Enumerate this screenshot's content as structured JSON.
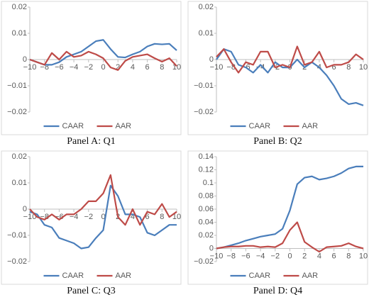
{
  "chart_data": [
    {
      "type": "line",
      "title": "Panel A: Q1",
      "x": [
        -10,
        -9,
        -8,
        -7,
        -6,
        -5,
        -4,
        -3,
        -2,
        -1,
        0,
        1,
        2,
        3,
        4,
        5,
        6,
        7,
        8,
        9,
        10
      ],
      "xlim": [
        -10,
        10
      ],
      "xticks": [
        {
          "value": -10,
          "label": "−10"
        },
        {
          "value": -8,
          "label": "−8"
        },
        {
          "value": -6,
          "label": "−6"
        },
        {
          "value": -4,
          "label": "−4"
        },
        {
          "value": -2,
          "label": "−2"
        },
        0,
        2,
        4,
        6,
        8,
        10
      ],
      "ylim": [
        -0.02,
        0.02
      ],
      "yticks": [
        {
          "value": -0.02,
          "label": "−0.02"
        },
        {
          "value": -0.01,
          "label": "−0.01"
        },
        0,
        0.01,
        0.02
      ],
      "legend": "bottom",
      "series": [
        {
          "name": "CAAR",
          "color": "#4a7ebb",
          "values": [
            0,
            -0.001,
            -0.002,
            -0.002,
            -0.001,
            0.001,
            0.002,
            0.003,
            0.005,
            0.007,
            0.0075,
            0.004,
            0.001,
            0.0008,
            0.002,
            0.003,
            0.005,
            0.006,
            0.0058,
            0.006,
            0.0035
          ]
        },
        {
          "name": "AAR",
          "color": "#be4b48",
          "values": [
            0,
            -0.001,
            -0.002,
            0.0025,
            0,
            0.003,
            0.001,
            0.0015,
            0.003,
            0.002,
            0.0005,
            -0.003,
            -0.004,
            -0.0005,
            0.001,
            0.0015,
            0.002,
            0.0005,
            -0.0008,
            0.0005,
            -0.0025
          ]
        }
      ]
    },
    {
      "type": "line",
      "title": "Panel B: Q2",
      "x": [
        -10,
        -9,
        -8,
        -7,
        -6,
        -5,
        -4,
        -3,
        -2,
        -1,
        0,
        1,
        2,
        3,
        4,
        5,
        6,
        7,
        8,
        9,
        10
      ],
      "xlim": [
        -10,
        10
      ],
      "xticks": [
        {
          "value": -10,
          "label": "−10"
        },
        {
          "value": -8,
          "label": "−8"
        },
        {
          "value": -6,
          "label": "−6"
        },
        {
          "value": -4,
          "label": "−4"
        },
        {
          "value": -2,
          "label": "−2"
        },
        0,
        2,
        4,
        6,
        8,
        10
      ],
      "ylim": [
        -0.02,
        0.02
      ],
      "yticks": [
        {
          "value": -0.02,
          "label": "−0.02"
        },
        {
          "value": -0.01,
          "label": "−0.01"
        },
        0,
        0.01,
        0.02
      ],
      "legend": "bottom",
      "series": [
        {
          "name": "CAAR",
          "color": "#4a7ebb",
          "values": [
            0,
            0.004,
            0.003,
            -0.002,
            -0.003,
            -0.005,
            -0.002,
            -0.005,
            -0.001,
            -0.003,
            -0.003,
            0,
            -0.003,
            -0.001,
            -0.003,
            -0.006,
            -0.01,
            -0.015,
            -0.017,
            -0.0165,
            -0.0175
          ]
        },
        {
          "name": "AAR",
          "color": "#be4b48",
          "values": [
            0.001,
            0.004,
            -0.001,
            -0.005,
            -0.001,
            -0.002,
            0.003,
            0.003,
            -0.003,
            -0.002,
            -0.003,
            0.005,
            -0.002,
            -0.001,
            0.003,
            -0.003,
            -0.002,
            -0.002,
            -0.001,
            0.002,
            0
          ]
        }
      ]
    },
    {
      "type": "line",
      "title": "Panel C: Q3",
      "x": [
        -10,
        -9,
        -8,
        -7,
        -6,
        -5,
        -4,
        -3,
        -2,
        -1,
        0,
        1,
        2,
        3,
        4,
        5,
        6,
        7,
        8,
        9,
        10
      ],
      "xlim": [
        -10,
        10
      ],
      "xticks": [
        {
          "value": -10,
          "label": "−10"
        },
        {
          "value": -8,
          "label": "−8"
        },
        {
          "value": -6,
          "label": "−6"
        },
        {
          "value": -4,
          "label": "−4"
        },
        {
          "value": -2,
          "label": "−2"
        },
        0,
        2,
        4,
        6,
        8,
        10
      ],
      "ylim": [
        -0.02,
        0.02
      ],
      "yticks": [
        {
          "value": -0.02,
          "label": "−0.02"
        },
        {
          "value": -0.01,
          "label": "−0.01"
        },
        0,
        0.01,
        0.02
      ],
      "legend": "bottom",
      "series": [
        {
          "name": "CAAR",
          "color": "#4a7ebb",
          "values": [
            -0.001,
            -0.002,
            -0.006,
            -0.007,
            -0.011,
            -0.012,
            -0.013,
            -0.015,
            -0.0145,
            -0.011,
            -0.008,
            0.009,
            0.005,
            -0.002,
            -0.002,
            -0.003,
            -0.009,
            -0.01,
            -0.008,
            -0.006,
            -0.006
          ]
        },
        {
          "name": "AAR",
          "color": "#be4b48",
          "values": [
            0,
            -0.003,
            -0.004,
            -0.002,
            -0.004,
            -0.002,
            -0.002,
            0,
            0.003,
            0.003,
            0.006,
            0.013,
            -0.003,
            -0.006,
            0,
            -0.006,
            -0.001,
            -0.002,
            0.002,
            -0.003,
            -0.001
          ]
        }
      ]
    },
    {
      "type": "line",
      "title": "Panel D: Q4",
      "x": [
        -10,
        -9,
        -8,
        -7,
        -6,
        -5,
        -4,
        -3,
        -2,
        -1,
        0,
        1,
        2,
        3,
        4,
        5,
        6,
        7,
        8,
        9,
        10
      ],
      "xlim": [
        -10,
        10
      ],
      "xticks": [
        {
          "value": -10,
          "label": "−10"
        },
        {
          "value": -8,
          "label": "−8"
        },
        {
          "value": -6,
          "label": "−6"
        },
        {
          "value": -4,
          "label": "−4"
        },
        {
          "value": -2,
          "label": "−2"
        },
        0,
        2,
        4,
        6,
        8,
        10
      ],
      "ylim": [
        -0.02,
        0.14
      ],
      "yticks": [
        {
          "value": -0.02,
          "label": "−0.02"
        },
        0,
        0.02,
        0.04,
        0.06,
        0.08,
        0.1,
        0.12,
        0.14
      ],
      "legend": "bottom",
      "series": [
        {
          "name": "CAAR",
          "color": "#4a7ebb",
          "values": [
            0,
            0.002,
            0.005,
            0.008,
            0.012,
            0.015,
            0.018,
            0.02,
            0.022,
            0.03,
            0.058,
            0.098,
            0.108,
            0.11,
            0.105,
            0.107,
            0.11,
            0.115,
            0.122,
            0.125,
            0.125
          ]
        },
        {
          "name": "AAR",
          "color": "#be4b48",
          "values": [
            0,
            0.002,
            0.003,
            0.003,
            0.004,
            0.004,
            0.002,
            0.003,
            0.002,
            0.008,
            0.028,
            0.04,
            0.01,
            0.002,
            -0.005,
            0.002,
            0.003,
            0.004,
            0.008,
            0.003,
            0
          ]
        }
      ]
    }
  ]
}
